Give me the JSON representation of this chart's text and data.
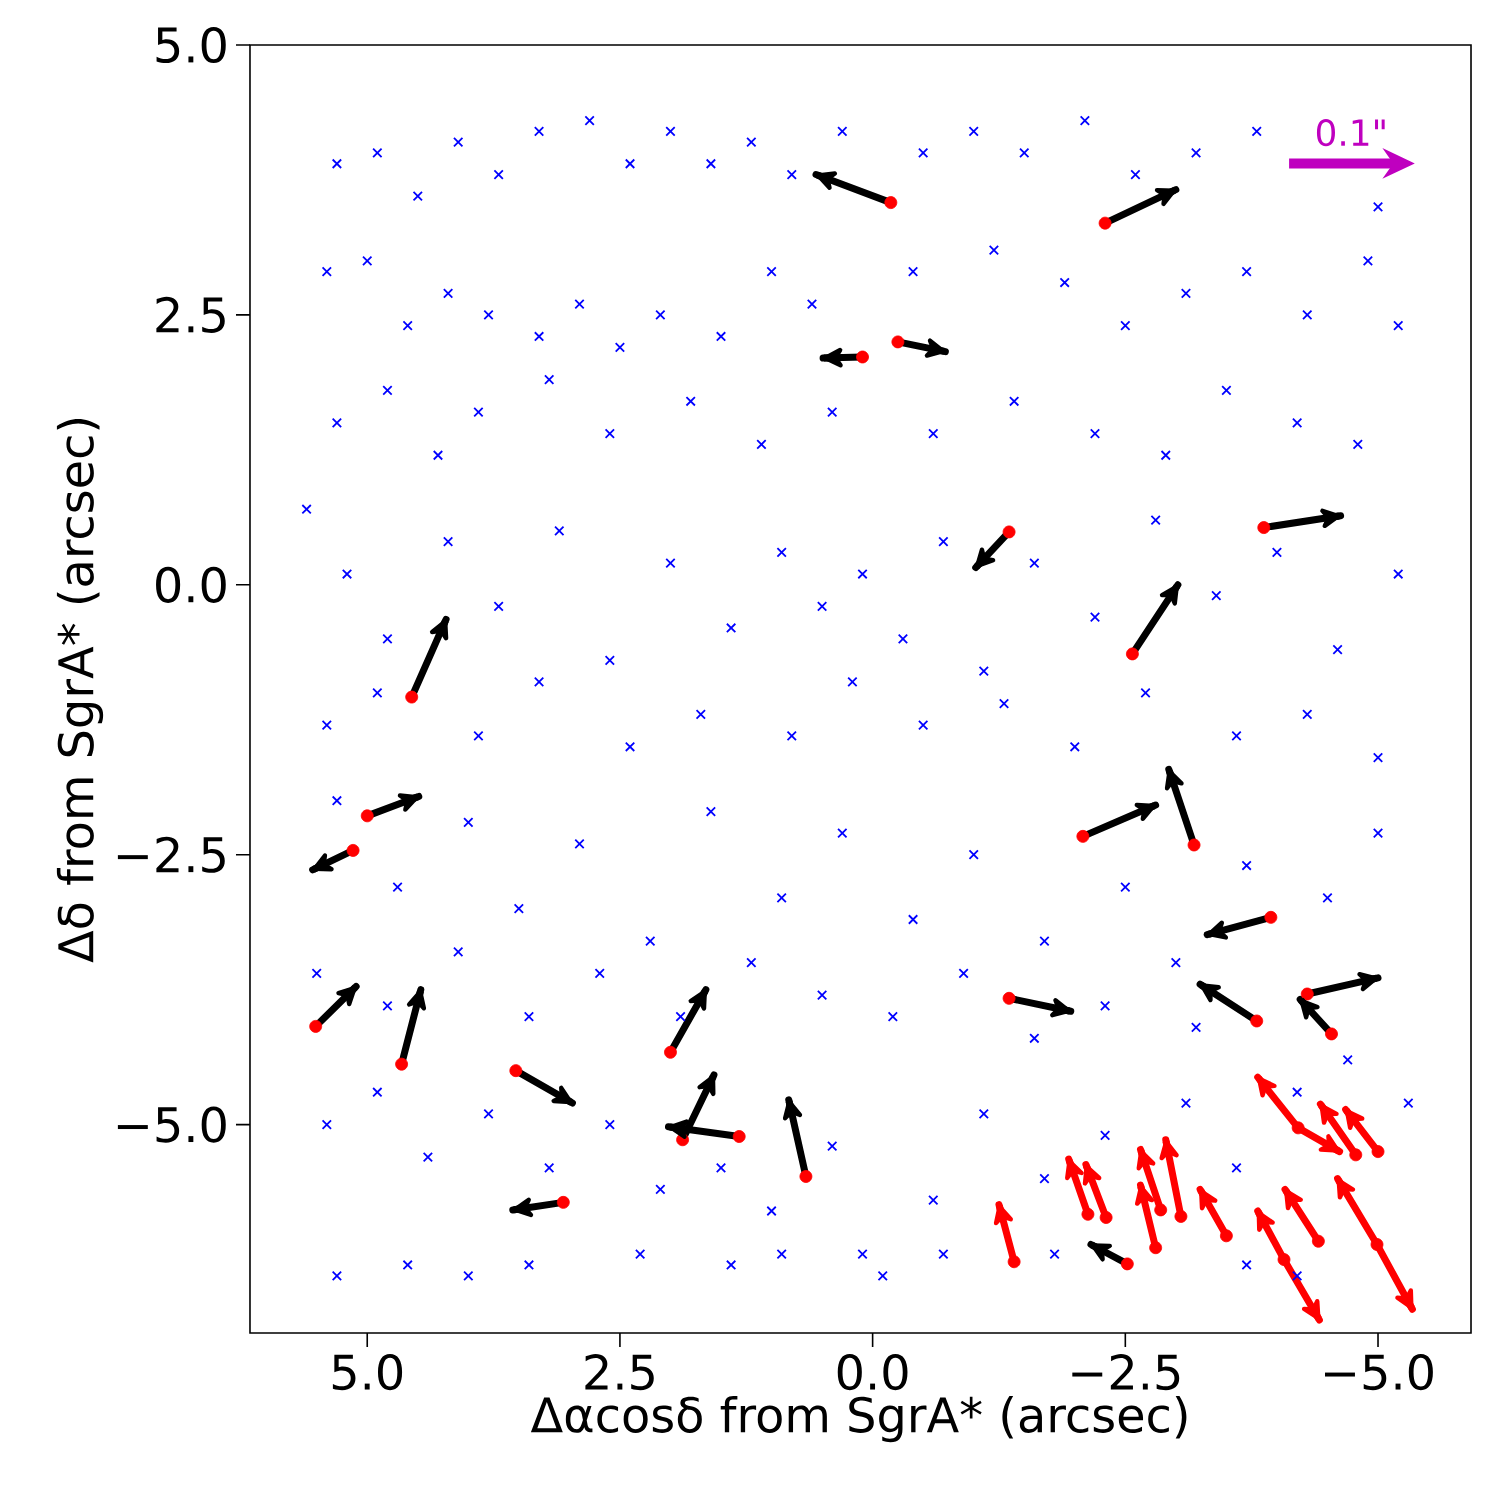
{
  "chart_data": {
    "type": "scatter",
    "xlabel": "Δαcosδ from SgrA* (arcsec)",
    "ylabel": "Δδ from SgrA* (arcsec)",
    "xlim": [
      6.16,
      -5.92
    ],
    "ylim": [
      -6.93,
      5.0
    ],
    "xticks": [
      {
        "value": 5.0,
        "label": "5.0"
      },
      {
        "value": 2.5,
        "label": "2.5"
      },
      {
        "value": 0.0,
        "label": "0.0"
      },
      {
        "value": -2.5,
        "label": "−2.5"
      },
      {
        "value": -5.0,
        "label": "−5.0"
      }
    ],
    "yticks": [
      {
        "value": 5.0,
        "label": "5.0"
      },
      {
        "value": 2.5,
        "label": "2.5"
      },
      {
        "value": 0.0,
        "label": "0.0"
      },
      {
        "value": -2.5,
        "label": "−2.5"
      },
      {
        "value": -5.0,
        "label": "−5.0"
      }
    ],
    "series": [
      {
        "marker": "cross",
        "color": "#0000ff",
        "x": [
          5.3,
          4.9,
          4.5,
          4.1,
          3.7,
          3.3,
          2.8,
          2.4,
          2.0,
          1.6,
          1.2,
          0.8,
          0.3,
          -0.5,
          -1.0,
          -1.5,
          -2.1,
          -2.6,
          -3.2,
          -3.8,
          -4.4,
          -5.0,
          5.4,
          5.0,
          4.6,
          4.2,
          3.8,
          3.3,
          2.9,
          2.5,
          2.1,
          1.5,
          1.0,
          0.6,
          -0.4,
          -1.2,
          -1.9,
          -2.5,
          -3.1,
          -3.7,
          -4.3,
          -4.9,
          -5.2,
          5.3,
          4.8,
          4.3,
          3.9,
          3.2,
          2.6,
          1.8,
          1.1,
          0.4,
          -0.6,
          -1.4,
          -2.2,
          -2.9,
          -3.5,
          -4.2,
          -4.8,
          5.6,
          5.2,
          4.8,
          4.2,
          3.7,
          3.1,
          2.6,
          2.0,
          1.4,
          0.9,
          0.5,
          0.1,
          -0.3,
          -0.7,
          -1.1,
          -1.6,
          -2.2,
          -2.8,
          -3.4,
          -4.0,
          -4.6,
          -5.2,
          5.4,
          4.9,
          3.9,
          3.3,
          2.4,
          1.7,
          0.8,
          0.2,
          -0.5,
          -1.3,
          -2.0,
          -2.7,
          -3.6,
          -4.3,
          -5.0,
          5.3,
          4.7,
          4.0,
          3.5,
          2.9,
          2.2,
          1.6,
          0.9,
          0.3,
          -0.4,
          -1.0,
          -1.7,
          -2.5,
          -3.0,
          -3.7,
          -4.5,
          -5.0,
          5.5,
          4.8,
          4.1,
          3.4,
          2.7,
          1.9,
          1.2,
          0.5,
          -0.2,
          -0.9,
          -1.6,
          -2.3,
          -3.2,
          -4.7,
          5.4,
          4.9,
          4.4,
          3.8,
          3.2,
          2.6,
          2.1,
          1.5,
          1.0,
          0.4,
          0.1,
          -0.6,
          -1.1,
          -1.7,
          -2.3,
          -3.1,
          -3.6,
          -4.2,
          -5.3,
          5.3,
          4.6,
          4.0,
          3.4,
          2.3,
          1.4,
          0.9,
          -0.1,
          -0.7,
          -1.8,
          -3.7,
          -4.2
        ],
        "values": [
          3.9,
          4.0,
          3.6,
          4.1,
          3.8,
          4.2,
          4.3,
          3.9,
          4.2,
          3.9,
          4.1,
          3.8,
          4.2,
          4.0,
          4.2,
          4.0,
          4.3,
          3.8,
          4.0,
          4.2,
          null,
          3.5,
          2.9,
          3.0,
          2.4,
          2.7,
          2.5,
          2.3,
          2.6,
          2.2,
          2.5,
          2.3,
          2.9,
          2.6,
          2.9,
          3.1,
          2.8,
          2.4,
          2.7,
          2.9,
          2.5,
          3.0,
          2.4,
          1.5,
          1.8,
          1.2,
          1.6,
          1.9,
          1.4,
          1.7,
          1.3,
          1.6,
          1.4,
          1.7,
          1.4,
          1.2,
          1.8,
          1.5,
          1.3,
          0.7,
          0.1,
          -0.5,
          0.4,
          -0.2,
          0.5,
          -0.7,
          0.2,
          -0.4,
          0.3,
          -0.2,
          0.1,
          -0.5,
          0.4,
          -0.8,
          0.2,
          -0.3,
          0.6,
          -0.1,
          0.3,
          -0.6,
          0.1,
          -1.3,
          -1.0,
          -1.4,
          -0.9,
          -1.5,
          -1.2,
          -1.4,
          -0.9,
          -1.3,
          -1.1,
          -1.5,
          -1.0,
          -1.4,
          -1.2,
          -1.6,
          -2.0,
          -2.8,
          -2.2,
          -3.0,
          -2.4,
          -3.3,
          -2.1,
          -2.9,
          -2.3,
          -3.1,
          -2.5,
          -3.3,
          -2.8,
          -3.5,
          -2.6,
          -2.9,
          -2.3,
          -3.6,
          -3.9,
          -3.4,
          -4.0,
          -3.6,
          -4.0,
          -3.5,
          -3.8,
          -4.0,
          -3.6,
          -4.2,
          -3.9,
          -4.1,
          -4.4,
          -5.0,
          -4.7,
          -5.3,
          -4.9,
          -5.4,
          -5.0,
          -5.6,
          -5.4,
          -5.8,
          -5.2,
          -6.2,
          -5.7,
          -4.9,
          -5.5,
          -5.1,
          -4.8,
          -5.4,
          -4.7,
          -4.8,
          -6.4,
          -6.3,
          -6.4,
          -6.3,
          -6.2,
          -6.3,
          -6.2,
          -6.4,
          -6.2,
          -6.2,
          -6.3,
          -6.4
        ]
      },
      {
        "type": "line",
        "color": "#000000",
        "x": [
          -0.18,
          0.56,
          null,
          -2.3,
          -3.0,
          null,
          0.1,
          0.49,
          null,
          -0.25,
          -0.72,
          null,
          -1.35,
          -1.02,
          null,
          -3.87,
          -4.63,
          null,
          -2.57,
          -3.02,
          null,
          4.56,
          4.22,
          null,
          5.0,
          4.49,
          null,
          5.14,
          5.54,
          null,
          -2.08,
          -2.8,
          null,
          -3.18,
          -2.93,
          null,
          -3.94,
          -3.31,
          null,
          -4.3,
          -5.0,
          null,
          -4.54,
          -4.23,
          null,
          -3.8,
          -3.24,
          null,
          -1.35,
          -1.96,
          null,
          5.51,
          5.11,
          null,
          4.66,
          4.47,
          null,
          3.53,
          2.97,
          null,
          2.0,
          1.65,
          null,
          1.88,
          1.57,
          null,
          1.32,
          2.02,
          null,
          0.66,
          0.83,
          null,
          3.06,
          3.56,
          null,
          -2.52,
          -2.16
        ],
        "values": [
          3.54,
          3.8,
          null,
          3.35,
          3.66,
          null,
          2.11,
          2.1,
          null,
          2.25,
          2.16,
          null,
          0.49,
          0.16,
          null,
          0.53,
          0.64,
          null,
          -0.64,
          0.0,
          null,
          -1.04,
          -0.32,
          null,
          -2.14,
          -1.96,
          null,
          -2.46,
          -2.64,
          null,
          -2.33,
          -2.04,
          null,
          -2.41,
          -1.71,
          null,
          -3.08,
          -3.24,
          null,
          -3.79,
          -3.64,
          null,
          -4.16,
          -3.84,
          null,
          -4.04,
          -3.7,
          null,
          -3.83,
          -3.95,
          null,
          -4.09,
          -3.72,
          null,
          -4.44,
          -3.75,
          null,
          -4.5,
          -4.8,
          null,
          -4.33,
          -3.75,
          null,
          -5.14,
          -4.54,
          null,
          -5.11,
          -5.02,
          null,
          -5.48,
          -4.77,
          null,
          -5.72,
          -5.79,
          null,
          -6.29,
          -6.11
        ]
      },
      {
        "type": "line",
        "color": "#ff0000",
        "x": [
          -1.4,
          -1.25,
          null,
          -2.13,
          -1.94,
          null,
          -2.31,
          -2.11,
          null,
          -2.8,
          -2.65,
          null,
          -2.85,
          -2.65,
          null,
          -3.05,
          -2.9,
          null,
          -3.5,
          -3.24,
          null,
          -4.07,
          -4.42,
          null,
          -4.07,
          -3.81,
          null,
          -4.21,
          -3.81,
          null,
          -4.21,
          -4.62,
          null,
          -4.78,
          -4.43,
          null,
          -5.0,
          -4.68,
          null,
          -4.41,
          -4.08,
          null,
          -4.99,
          -5.34,
          null,
          -4.99,
          -4.6
        ],
        "values": [
          -6.27,
          -5.74,
          null,
          -5.83,
          -5.32,
          null,
          -5.86,
          -5.37,
          null,
          -6.14,
          -5.56,
          null,
          -5.79,
          -5.23,
          null,
          -5.85,
          -5.14,
          null,
          -6.03,
          -5.6,
          null,
          -6.25,
          -6.81,
          null,
          -6.25,
          -5.8,
          null,
          -5.03,
          -4.56,
          null,
          -5.03,
          -5.25,
          null,
          -5.28,
          -4.81,
          null,
          -5.25,
          -4.86,
          null,
          -6.08,
          -5.6,
          null,
          -6.11,
          -6.71,
          null,
          -6.11,
          -5.5
        ]
      },
      {
        "marker": "circle",
        "color": "#ff0000",
        "x": [
          -0.18,
          -2.3,
          0.1,
          -0.25,
          -1.35,
          -3.87,
          -2.57,
          4.56,
          5.0,
          5.14,
          -2.08,
          -3.18,
          -3.94,
          -4.3,
          -4.54,
          -3.8,
          -1.35,
          5.51,
          4.66,
          3.53,
          2.0,
          1.88,
          1.32,
          0.66,
          3.06,
          -2.52,
          -1.4,
          -2.13,
          -2.31,
          -2.8,
          -2.85,
          -3.05,
          -3.5,
          -4.07,
          -4.21,
          -4.78,
          -5.0,
          -4.41,
          -4.99
        ],
        "values": [
          3.54,
          3.35,
          2.11,
          2.25,
          0.49,
          0.53,
          -0.64,
          -1.04,
          -2.14,
          -2.46,
          -2.33,
          -2.41,
          -3.08,
          -3.79,
          -4.16,
          -4.04,
          -3.83,
          -4.09,
          -4.44,
          -4.5,
          -4.33,
          -5.14,
          -5.11,
          -5.48,
          -5.72,
          -6.29,
          -6.27,
          -5.83,
          -5.86,
          -6.14,
          -5.79,
          -5.85,
          -6.03,
          -6.25,
          -5.03,
          -5.28,
          -5.25,
          -6.08,
          -6.11
        ]
      }
    ],
    "annotations": [
      "0.1\""
    ]
  }
}
